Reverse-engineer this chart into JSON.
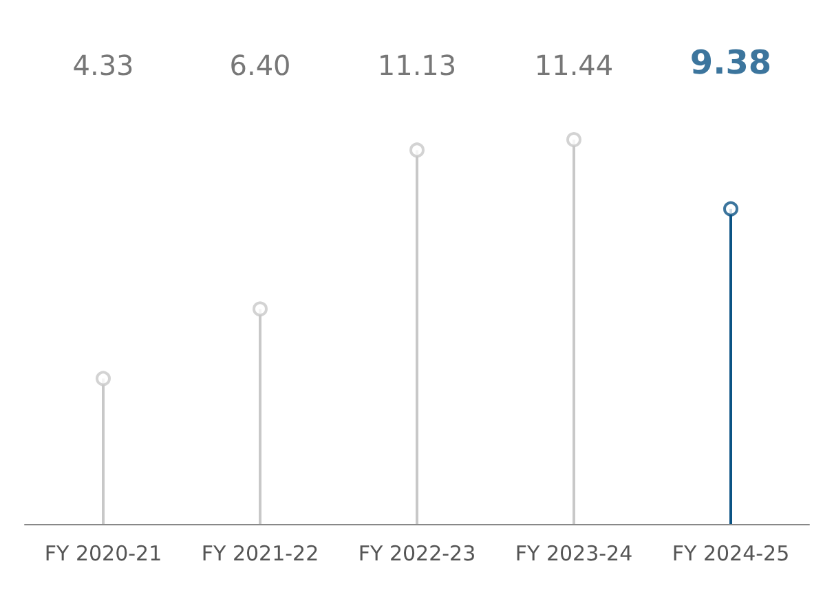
{
  "chart_data": {
    "type": "lollipop",
    "categories": [
      "FY 2020-21",
      "FY 2021-22",
      "FY 2022-23",
      "FY 2023-24",
      "FY 2024-25"
    ],
    "values": [
      4.33,
      6.4,
      11.13,
      11.44,
      9.38
    ],
    "value_labels": [
      "4.33",
      "6.40",
      "11.13",
      "11.44",
      "9.38"
    ],
    "colors": [
      "#c8c8c8",
      "#c8c8c8",
      "#c8c8c8",
      "#c8c8c8",
      "#0b5384"
    ],
    "marker": "circle"
  }
}
